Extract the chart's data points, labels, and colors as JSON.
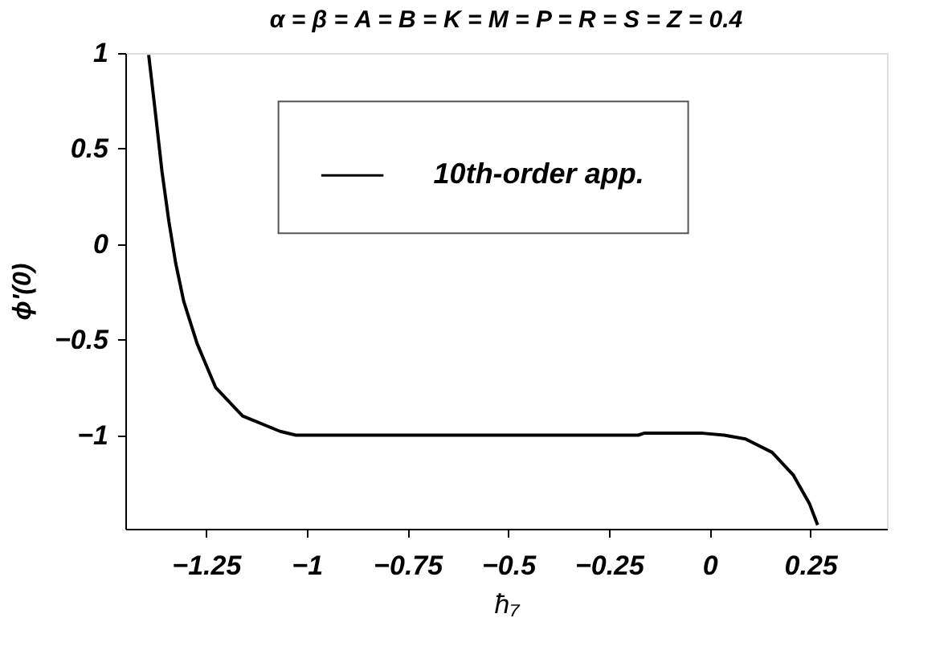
{
  "chart_data": {
    "type": "line",
    "title": "α = β = A = B = K = M = P = R = S = Z = 0.4",
    "xlabel": "ħ₇",
    "ylabel": "ϕ'(0)",
    "xlim": [
      -1.45,
      0.44
    ],
    "ylim": [
      -1.49,
      1
    ],
    "xticks": [
      -1.25,
      -1,
      -0.75,
      -0.5,
      -0.25,
      0,
      0.25
    ],
    "yticks": [
      -1,
      -0.5,
      0,
      0.5,
      1
    ],
    "grid": false,
    "legend": "top",
    "line_style": "solid",
    "marker": "none",
    "series": [
      {
        "name": "10th-order app.",
        "color": "#000000",
        "x": [
          -1.392,
          -1.375,
          -1.359,
          -1.342,
          -1.325,
          -1.305,
          -1.272,
          -1.226,
          -1.159,
          -1.066,
          -1.027,
          -0.9,
          -0.7,
          -0.5,
          -0.3,
          -0.177,
          -0.163,
          -0.1,
          -0.017,
          0.036,
          0.089,
          0.155,
          0.208,
          0.248,
          0.268
        ],
        "values": [
          0.99,
          0.68,
          0.38,
          0.12,
          -0.1,
          -0.3,
          -0.52,
          -0.75,
          -0.9,
          -0.98,
          -1.0,
          -1.0,
          -1.0,
          -1.0,
          -1.0,
          -1.0,
          -0.99,
          -0.99,
          -0.99,
          -1.0,
          -1.02,
          -1.09,
          -1.21,
          -1.36,
          -1.47
        ]
      }
    ]
  }
}
